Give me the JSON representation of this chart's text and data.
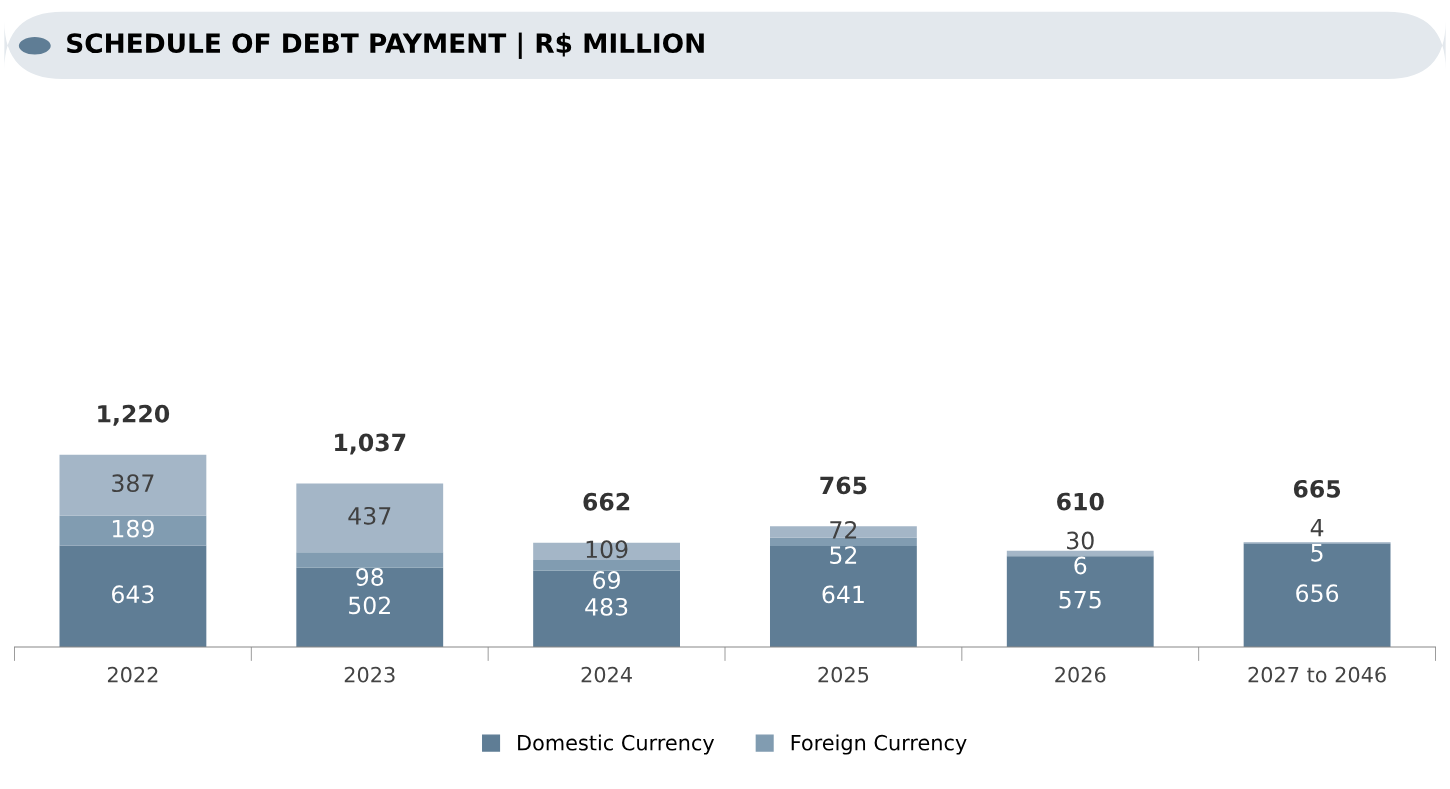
{
  "chart_data": {
    "type": "bar",
    "title": "SCHEDULE OF DEBT PAYMENT | R$ MILLION",
    "stacked": true,
    "data_labels": true,
    "legend": "bottom",
    "grid": false,
    "categories": [
      "2022",
      "2023",
      "2024",
      "2025",
      "2026",
      "2027 to 2046"
    ],
    "series": [
      {
        "name": "Domestic Currency",
        "color": "#5f7d95",
        "values": [
          643,
          502,
          483,
          641,
          575,
          656
        ]
      },
      {
        "name": "Foreign Currency",
        "color": "#819cb1",
        "values": [
          189,
          98,
          69,
          52,
          6,
          5
        ]
      },
      {
        "color": "#a4b6c7",
        "values": [
          387,
          437,
          109,
          72,
          30,
          4
        ]
      }
    ],
    "totals": [
      "1,220",
      "1,037",
      "662",
      "765",
      "610",
      "665"
    ]
  }
}
